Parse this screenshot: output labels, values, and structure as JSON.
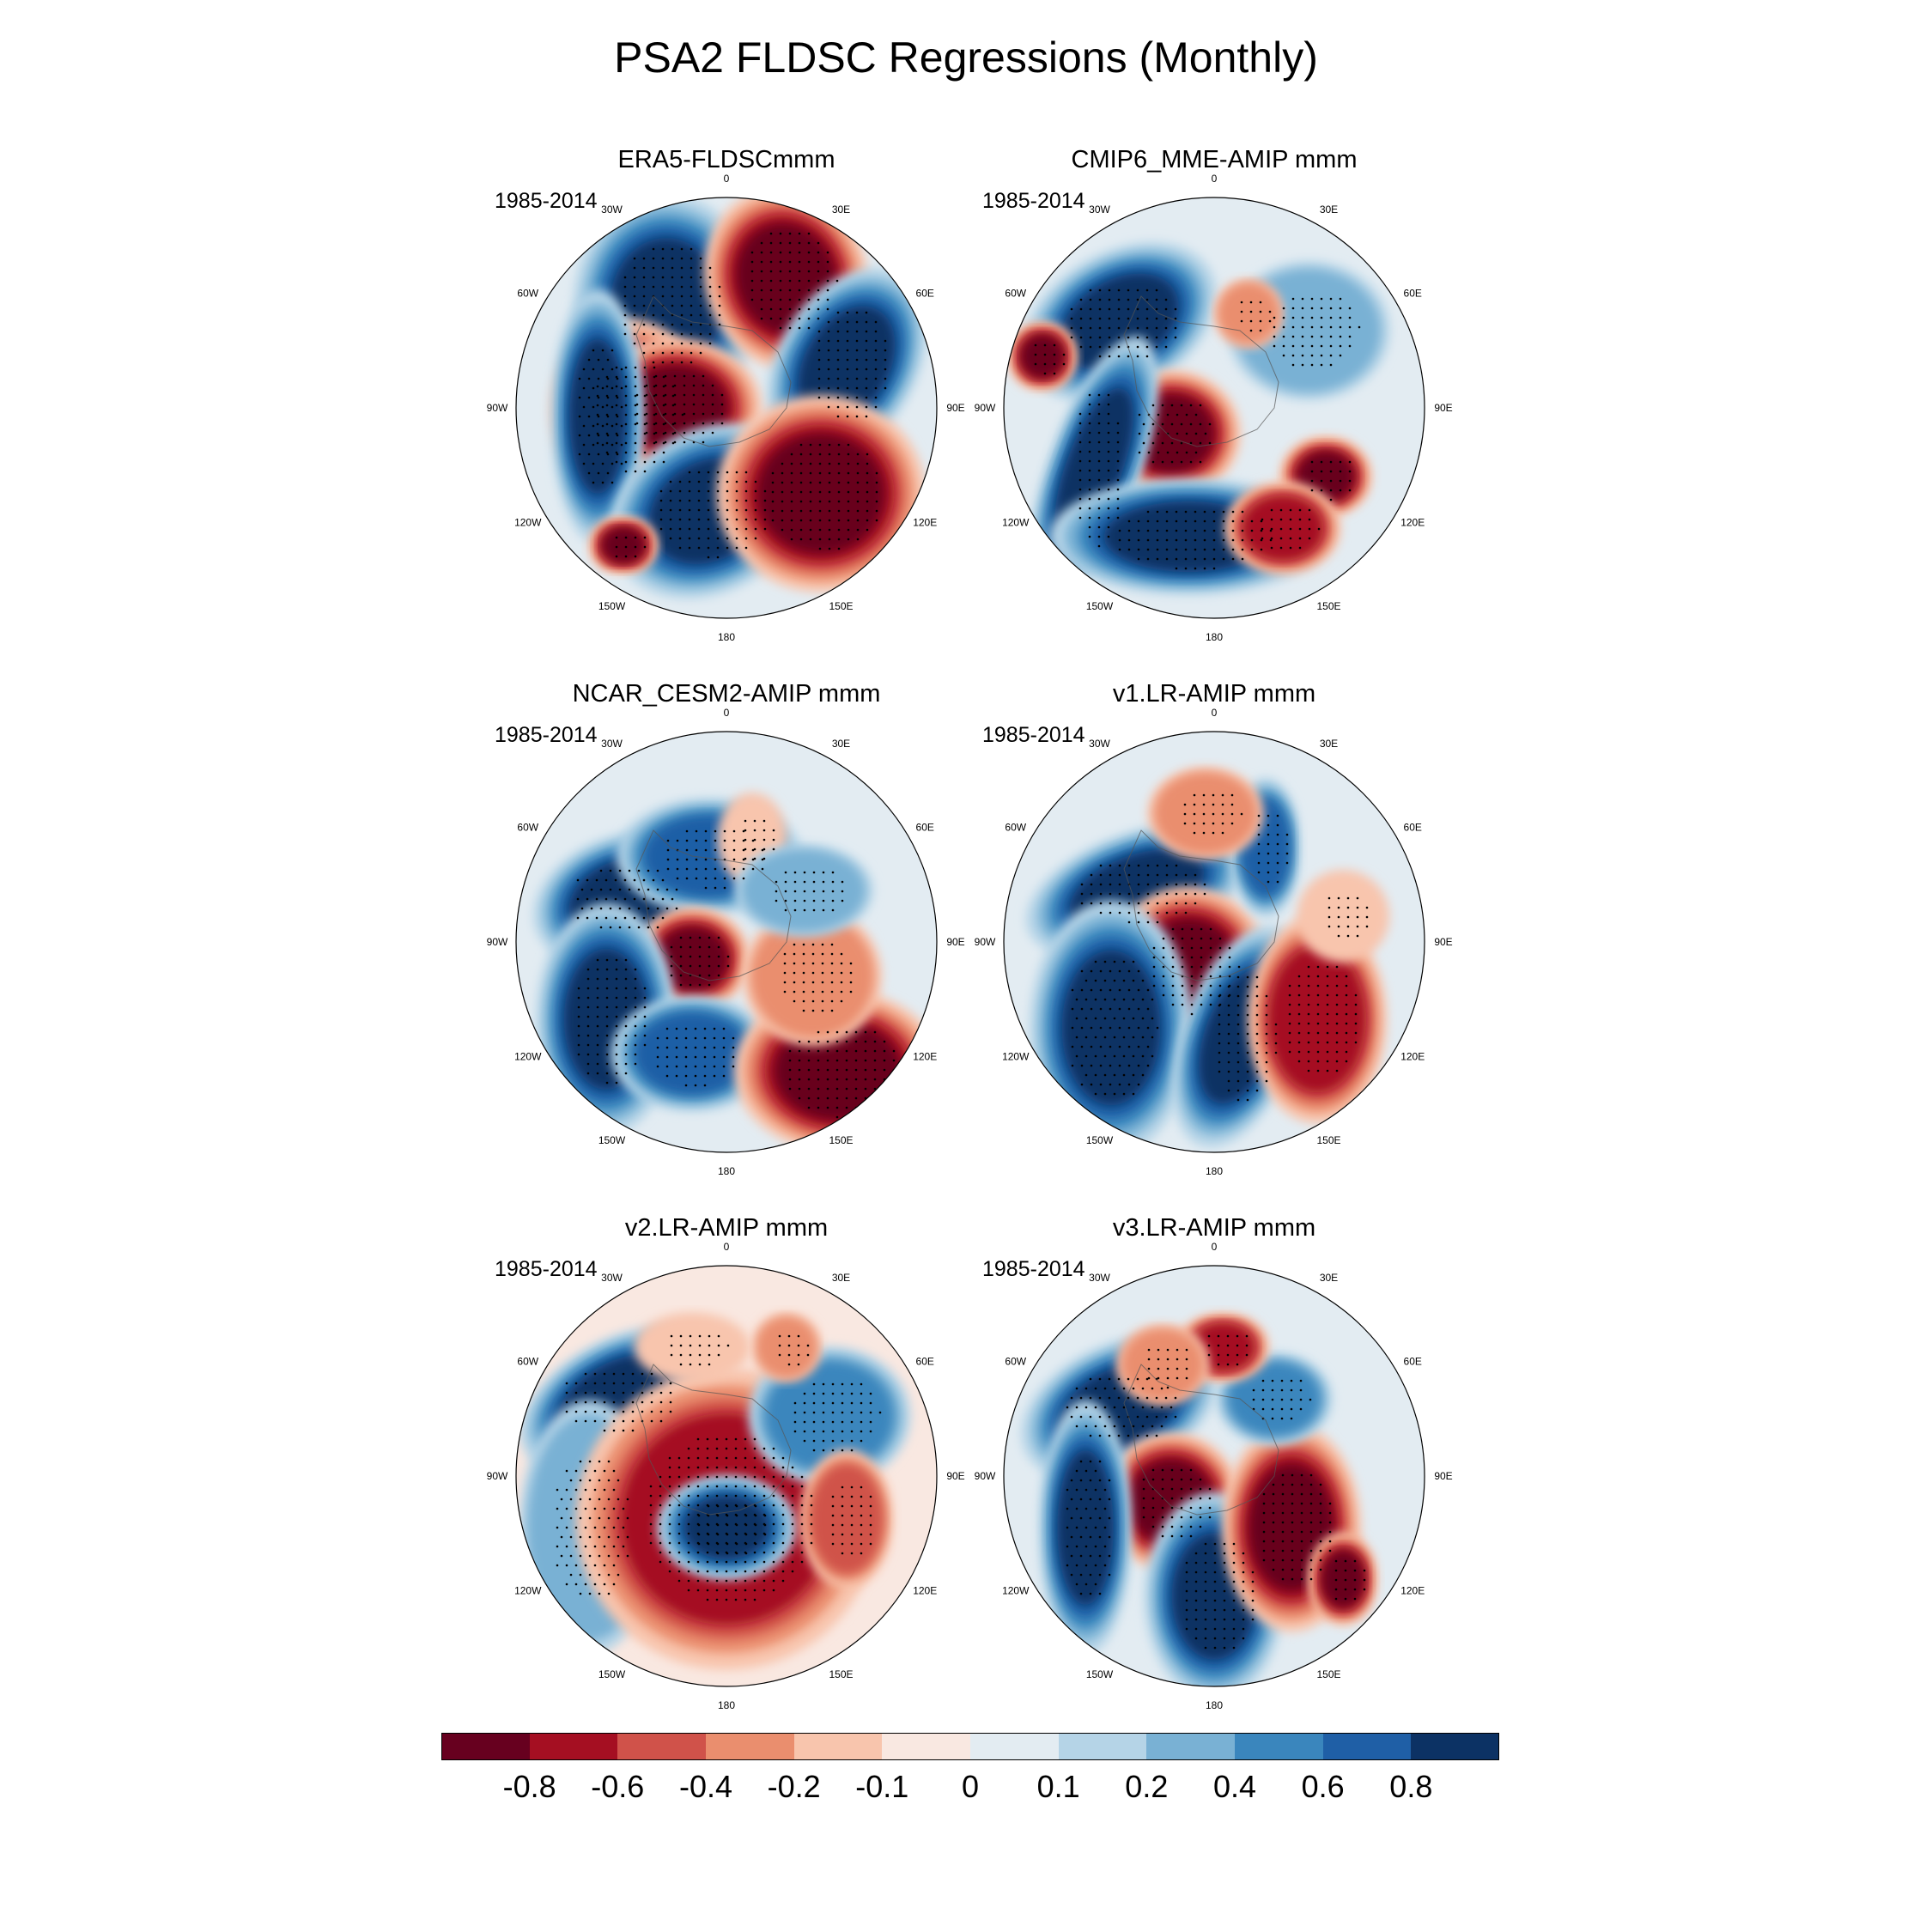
{
  "title": "PSA2 FLDSC Regressions (Monthly)",
  "period": "1985-2014",
  "lon_labels": [
    "0",
    "30E",
    "60E",
    "90E",
    "120E",
    "150E",
    "180",
    "150W",
    "120W",
    "90W",
    "60W",
    "30W"
  ],
  "panels": [
    {
      "title": "ERA5-FLDSCmmm"
    },
    {
      "title": "CMIP6_MME-AMIP  mmm"
    },
    {
      "title": "NCAR_CESM2-AMIP  mmm"
    },
    {
      "title": "v1.LR-AMIP  mmm"
    },
    {
      "title": "v2.LR-AMIP  mmm"
    },
    {
      "title": "v3.LR-AMIP  mmm"
    }
  ],
  "colorbar": {
    "colors": [
      "#67001f",
      "#a50f22",
      "#d0524a",
      "#ea8e6e",
      "#f8c5ad",
      "#f9e8e1",
      "#e3ecf2",
      "#b5d4e7",
      "#79b1d4",
      "#3a86bd",
      "#1f5fa6",
      "#0c3264"
    ],
    "labels": [
      "-0.8",
      "-0.6",
      "-0.4",
      "-0.2",
      "-0.1",
      "0",
      "0.1",
      "0.2",
      "0.4",
      "0.6",
      "0.8"
    ]
  }
}
